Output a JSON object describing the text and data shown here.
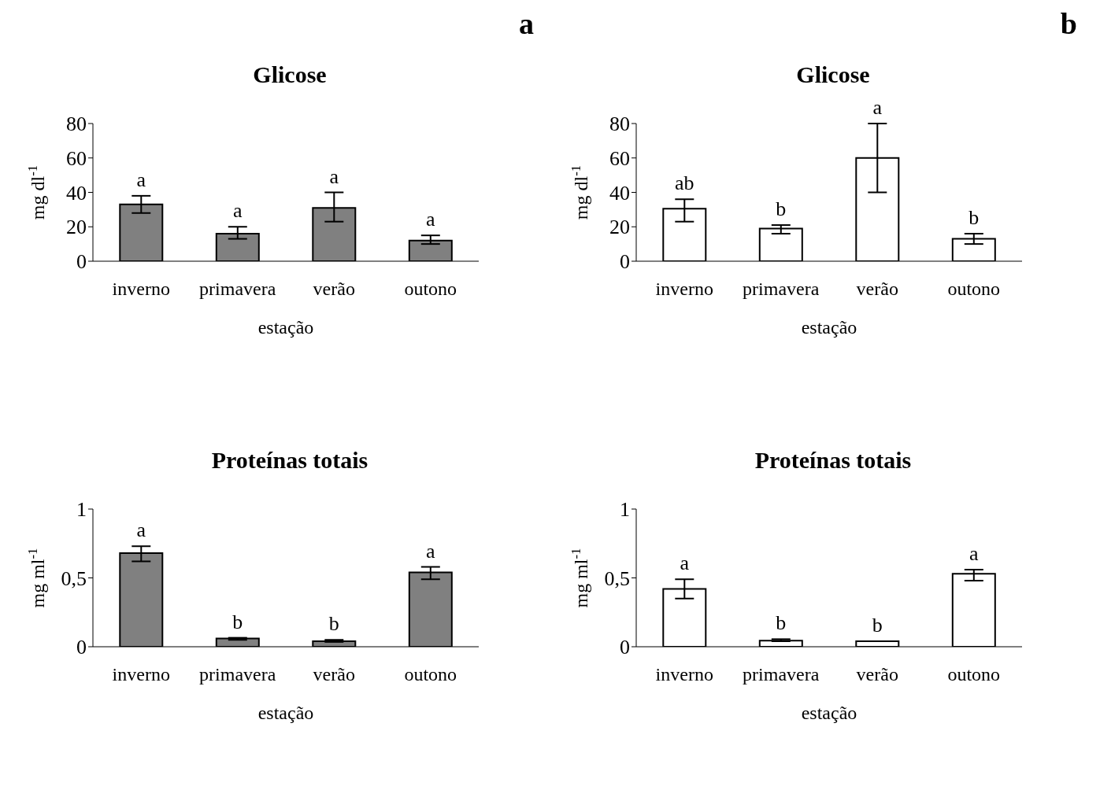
{
  "chart_data": [
    {
      "type": "bar",
      "title": "Glicose",
      "xlabel": "estação",
      "ylabel": "mg dl$^{-1}$",
      "categories": [
        "inverno",
        "primavera",
        "verão",
        "outono"
      ],
      "values": [
        33,
        16,
        31,
        12
      ],
      "errors": [
        [
          28,
          38
        ],
        [
          13,
          20
        ],
        [
          23,
          40
        ],
        [
          10,
          15
        ]
      ],
      "color": "#808080",
      "ylim": [
        0,
        80
      ],
      "yticks": [
        0,
        20,
        40,
        60,
        80
      ],
      "grid": false,
      "annotations": [
        "a",
        {
          "text": "a",
          "x": "inverno",
          "y": 38
        },
        {
          "text": "a",
          "x": "primavera",
          "y": 20
        },
        {
          "text": "a",
          "x": "verão",
          "y": 40
        },
        {
          "text": "a",
          "x": "outono",
          "y": 15
        }
      ]
    },
    {
      "type": "bar",
      "title": "Glicose",
      "xlabel": "estação",
      "ylabel": "mg dl$^{-1}$",
      "categories": [
        "inverno",
        "primavera",
        "verão",
        "outono"
      ],
      "values": [
        30.5,
        19,
        60,
        13
      ],
      "errors": [
        [
          23,
          36
        ],
        [
          16,
          21
        ],
        [
          40,
          80
        ],
        [
          10,
          16
        ]
      ],
      "color": "#ffffff",
      "ylim": [
        0,
        80
      ],
      "yticks": [
        0,
        20,
        40,
        60,
        80
      ],
      "grid": false,
      "annotations": [
        "b",
        {
          "text": "ab",
          "x": "inverno",
          "y": 36
        },
        {
          "text": "b",
          "x": "primavera",
          "y": 21
        },
        {
          "text": "a",
          "x": "verão",
          "y": 80
        },
        {
          "text": "b",
          "x": "outono",
          "y": 16
        }
      ]
    },
    {
      "type": "bar",
      "title": "Proteínas totais",
      "xlabel": "estação",
      "ylabel": "mg ml$^{-1}$",
      "categories": [
        "inverno",
        "primavera",
        "verão",
        "outono"
      ],
      "values": [
        0.68,
        0.06,
        0.04,
        0.54
      ],
      "errors": [
        [
          0.62,
          0.73
        ],
        [
          0.05,
          0.065
        ],
        [
          0.035,
          0.05
        ],
        [
          0.49,
          0.58
        ]
      ],
      "color": "#808080",
      "ylim": [
        0,
        1
      ],
      "yticks": [
        0,
        {
          "value": 0.5,
          "label": "0,5"
        },
        1
      ],
      "grid": false,
      "annotations": [
        {
          "text": "a",
          "x": "inverno",
          "y": 0.73
        },
        {
          "text": "b",
          "x": "primavera",
          "y": 0.065
        },
        {
          "text": "b",
          "x": "verão",
          "y": 0.05
        },
        {
          "text": "a",
          "x": "outono",
          "y": 0.58
        }
      ]
    },
    {
      "type": "bar",
      "title": "Proteínas totais",
      "xlabel": "estação",
      "ylabel": "mg ml$^{-1}$",
      "categories": [
        "inverno",
        "primavera",
        "verão",
        "outono"
      ],
      "values": [
        0.42,
        0.045,
        0.04,
        0.53
      ],
      "errors": [
        [
          0.35,
          0.49
        ],
        [
          0.04,
          0.055
        ],
        null,
        [
          0.48,
          0.56
        ]
      ],
      "color": "#ffffff",
      "ylim": [
        0,
        1
      ],
      "yticks": [
        0,
        {
          "value": 0.5,
          "label": "0,5"
        },
        1
      ],
      "grid": false,
      "annotations": [
        {
          "text": "a",
          "x": "inverno",
          "y": 0.49
        },
        {
          "text": "b",
          "x": "primavera",
          "y": 0.055
        },
        {
          "text": "b",
          "x": "verão",
          "y": 0.04
        },
        {
          "text": "a",
          "x": "outono",
          "y": 0.56
        }
      ]
    }
  ]
}
